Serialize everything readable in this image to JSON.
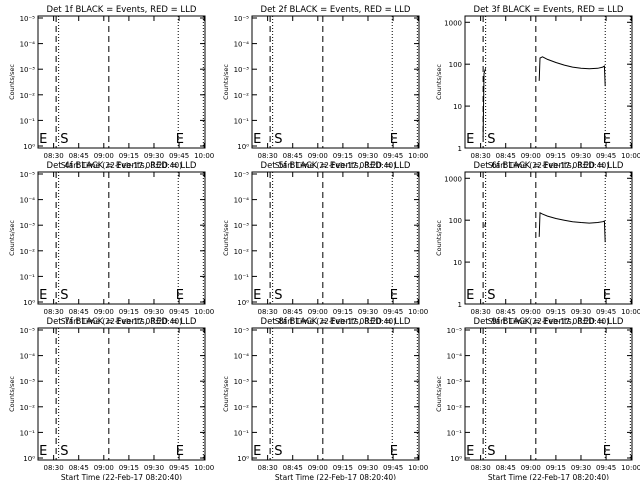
{
  "chart_data": [
    {
      "type": "line",
      "title": "Det 1f BLACK = Events, RED = LLD",
      "xlabel": "Start Time (22-Feb-17 08:20:40)",
      "ylabel": "Counts/sec",
      "yscale": "log",
      "x_ticks": [
        "08:30",
        "08:45",
        "09:00",
        "09:15",
        "09:30",
        "09:45",
        "10:00"
      ],
      "y_ticks": [
        "10⁰",
        "10⁻¹",
        "10⁻²",
        "10⁻³",
        "10⁻⁴",
        "10⁻⁵"
      ],
      "markers": [
        "E",
        "S",
        "E"
      ],
      "series": []
    },
    {
      "type": "line",
      "title": "Det 2f BLACK = Events, RED = LLD",
      "xlabel": "Start Time (22-Feb-17 08:20:40)",
      "ylabel": "Counts/sec",
      "yscale": "log",
      "x_ticks": [
        "08:30",
        "08:45",
        "09:00",
        "09:15",
        "09:30",
        "09:45",
        "10:00"
      ],
      "y_ticks": [
        "10⁰",
        "10⁻¹",
        "10⁻²",
        "10⁻³",
        "10⁻⁴",
        "10⁻⁵"
      ],
      "markers": [
        "E",
        "S",
        "E"
      ],
      "series": []
    },
    {
      "type": "line",
      "title": "Det 3f BLACK = Events, RED = LLD",
      "xlabel": "Start Time (22-Feb-17 08:20:40)",
      "ylabel": "Counts/sec",
      "yscale": "log",
      "x_ticks": [
        "08:30",
        "08:45",
        "09:00",
        "09:15",
        "09:30",
        "09:45",
        "10:00"
      ],
      "y_ticks": [
        "1",
        "10",
        "100",
        "1000"
      ],
      "markers": [
        "E",
        "S",
        "E"
      ],
      "series": [
        {
          "color": "#000000",
          "x": [
            "08:31:30",
            "08:32:00",
            "08:33:00",
            "08:33:00",
            "09:05:00",
            "09:05:30",
            "09:07:00",
            "09:10:00",
            "09:15:00",
            "09:20:00",
            "09:25:00",
            "09:30:00",
            "09:35:00",
            "09:40:00",
            "09:43:00",
            "09:44:00",
            "09:44:30"
          ],
          "y": [
            1.8,
            60,
            80,
            null,
            40,
            140,
            150,
            130,
            110,
            95,
            85,
            80,
            78,
            80,
            85,
            90,
            30
          ]
        }
      ]
    },
    {
      "type": "line",
      "title": "Det 4f BLACK = Events, RED = LLD",
      "xlabel": "Start Time (22-Feb-17 08:20:40)",
      "ylabel": "Counts/sec",
      "yscale": "log",
      "x_ticks": [
        "08:30",
        "08:45",
        "09:00",
        "09:15",
        "09:30",
        "09:45",
        "10:00"
      ],
      "y_ticks": [
        "10⁰",
        "10⁻¹",
        "10⁻²",
        "10⁻³",
        "10⁻⁴",
        "10⁻⁵"
      ],
      "markers": [
        "E",
        "S",
        "E"
      ],
      "series": []
    },
    {
      "type": "line",
      "title": "Det 5f BLACK = Events, RED = LLD",
      "xlabel": "Start Time (22-Feb-17 08:20:40)",
      "ylabel": "Counts/sec",
      "yscale": "log",
      "x_ticks": [
        "08:30",
        "08:45",
        "09:00",
        "09:15",
        "09:30",
        "09:45",
        "10:00"
      ],
      "y_ticks": [
        "10⁰",
        "10⁻¹",
        "10⁻²",
        "10⁻³",
        "10⁻⁴",
        "10⁻⁵"
      ],
      "markers": [
        "E",
        "S",
        "E"
      ],
      "series": []
    },
    {
      "type": "line",
      "title": "Det 6f BLACK = Events, RED = LLD",
      "xlabel": "Start Time (22-Feb-17 08:20:40)",
      "ylabel": "Counts/sec",
      "yscale": "log",
      "x_ticks": [
        "08:30",
        "08:45",
        "09:00",
        "09:15",
        "09:30",
        "09:45",
        "10:00"
      ],
      "y_ticks": [
        "1",
        "10",
        "100",
        "1000"
      ],
      "markers": [
        "E",
        "S",
        "E"
      ],
      "series": [
        {
          "color": "#000000",
          "x": [
            "08:32:30",
            "08:33:00",
            "08:33:00",
            "09:05:00",
            "09:05:30",
            "09:07:00",
            "09:10:00",
            "09:15:00",
            "09:20:00",
            "09:25:00",
            "09:30:00",
            "09:35:00",
            "09:40:00",
            "09:43:00",
            "09:44:00",
            "09:44:30"
          ],
          "y": [
            70,
            90,
            null,
            40,
            150,
            140,
            125,
            110,
            100,
            92,
            88,
            85,
            88,
            92,
            95,
            30
          ]
        }
      ]
    },
    {
      "type": "line",
      "title": "Det 7f BLACK = Events, RED = LLD",
      "xlabel": "Start Time (22-Feb-17 08:20:40)",
      "ylabel": "Counts/sec",
      "yscale": "log",
      "x_ticks": [
        "08:30",
        "08:45",
        "09:00",
        "09:15",
        "09:30",
        "09:45",
        "10:00"
      ],
      "y_ticks": [
        "10⁰",
        "10⁻¹",
        "10⁻²",
        "10⁻³",
        "10⁻⁴",
        "10⁻⁵"
      ],
      "markers": [
        "E",
        "S",
        "E"
      ],
      "series": []
    },
    {
      "type": "line",
      "title": "Det 8f BLACK = Events, RED = LLD",
      "xlabel": "Start Time (22-Feb-17 08:20:40)",
      "ylabel": "Counts/sec",
      "yscale": "log",
      "x_ticks": [
        "08:30",
        "08:45",
        "09:00",
        "09:15",
        "09:30",
        "09:45",
        "10:00"
      ],
      "y_ticks": [
        "10⁰",
        "10⁻¹",
        "10⁻²",
        "10⁻³",
        "10⁻⁴",
        "10⁻⁵"
      ],
      "markers": [
        "E",
        "S",
        "E"
      ],
      "series": []
    },
    {
      "type": "line",
      "title": "Det 9f BLACK = Events, RED = LLD",
      "xlabel": "Start Time (22-Feb-17 08:20:40)",
      "ylabel": "Counts/sec",
      "yscale": "log",
      "x_ticks": [
        "08:30",
        "08:45",
        "09:00",
        "09:15",
        "09:30",
        "09:45",
        "10:00"
      ],
      "y_ticks": [
        "10⁰",
        "10⁻¹",
        "10⁻²",
        "10⁻³",
        "10⁻⁴",
        "10⁻⁵"
      ],
      "markers": [
        "E",
        "S",
        "E"
      ],
      "series": []
    }
  ]
}
